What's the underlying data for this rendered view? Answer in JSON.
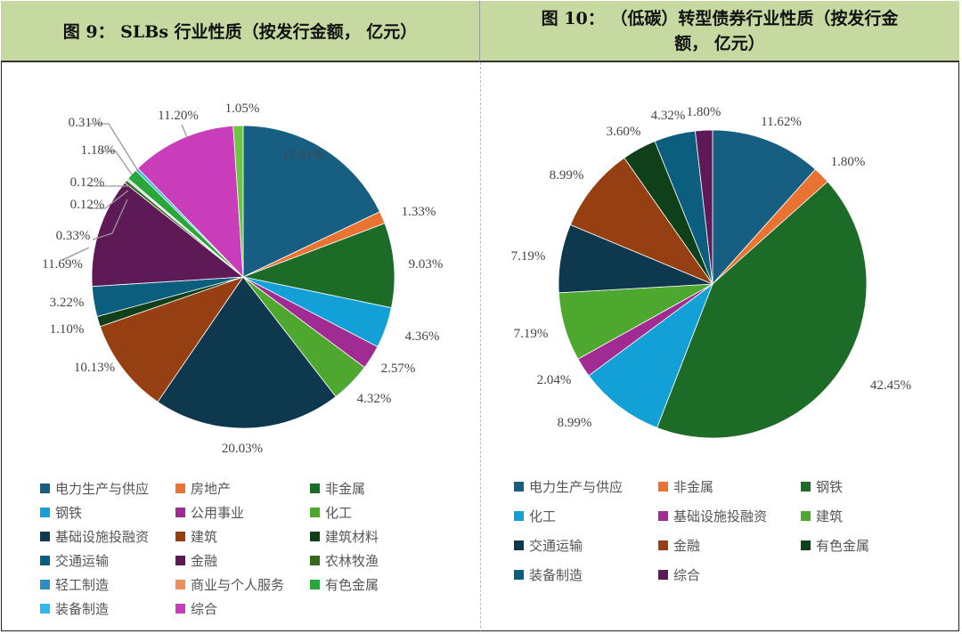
{
  "left": {
    "title": "图 9：  SLBs 行业性质（按发行金额，  亿元）",
    "chart_data": {
      "type": "pie",
      "title": "SLBs 行业性质（按发行金额，亿元）",
      "start_angle": "12 o'clock, clockwise",
      "slices": [
        {
          "name": "电力生产与供应",
          "value": 17.91,
          "color": "#175f82",
          "label": "17.91%"
        },
        {
          "name": "房地产",
          "value": 1.33,
          "color": "#e97333",
          "label": "1.33%"
        },
        {
          "name": "非金属",
          "value": 9.03,
          "color": "#1c6c28",
          "label": "9.03%"
        },
        {
          "name": "钢铁",
          "value": 4.36,
          "color": "#12a0d7",
          "label": "4.36%"
        },
        {
          "name": "公用事业",
          "value": 2.57,
          "color": "#a02b93",
          "label": "2.57%"
        },
        {
          "name": "化工",
          "value": 4.32,
          "color": "#4ea72e",
          "label": "4.32%"
        },
        {
          "name": "基础设施投融资",
          "value": 20.03,
          "color": "#0e384e",
          "label": "20.03%"
        },
        {
          "name": "建筑",
          "value": 10.13,
          "color": "#963f12",
          "label": "10.13%"
        },
        {
          "name": "建筑材料",
          "value": 1.1,
          "color": "#10401a",
          "label": "1.10%"
        },
        {
          "name": "交通运输",
          "value": 3.22,
          "color": "#0c5e7e",
          "label": "3.22%"
        },
        {
          "name": "金融",
          "value": 11.69,
          "color": "#5e1a57",
          "label": "11.69%"
        },
        {
          "name": "农林牧渔",
          "value": 0.33,
          "color": "#33691e",
          "label": "0.33%"
        },
        {
          "name": "轻工制造",
          "value": 0.12,
          "color": "#2b8ec3",
          "label": "0.12%"
        },
        {
          "name": "商业与个人服务",
          "value": 0.12,
          "color": "#ef8f5c",
          "label": "0.12%"
        },
        {
          "name": "有色金属",
          "value": 1.18,
          "color": "#2aa63a",
          "label": "1.18%"
        },
        {
          "name": "装备制造",
          "value": 0.31,
          "color": "#32b7ec",
          "label": "0.31%"
        },
        {
          "name": "综合",
          "value": 11.2,
          "color": "#c93dba",
          "label": "11.20%"
        },
        {
          "name": "",
          "value": 1.05,
          "color": "#6cc644",
          "label": "1.05%"
        }
      ],
      "legend": [
        "电力生产与供应",
        "房地产",
        "非金属",
        "钢铁",
        "公用事业",
        "化工",
        "基础设施投融资",
        "建筑",
        "建筑材料",
        "交通运输",
        "金融",
        "农林牧渔",
        "轻工制造",
        "商业与个人服务",
        "有色金属",
        "装备制造",
        "综合"
      ],
      "legend_position": "bottom"
    }
  },
  "right": {
    "title_line1": "图 10：  （低碳）转型债券行业性质（按发行金",
    "title_line2": "额，  亿元）",
    "chart_data": {
      "type": "pie",
      "title": "（低碳）转型债券行业性质（按发行金额，亿元）",
      "start_angle": "12 o'clock, clockwise",
      "slices": [
        {
          "name": "电力生产与供应",
          "value": 11.62,
          "color": "#175f82",
          "label": "11.62%"
        },
        {
          "name": "非金属",
          "value": 1.8,
          "color": "#e97333",
          "label": "1.80%"
        },
        {
          "name": "钢铁",
          "value": 42.45,
          "color": "#1c6c28",
          "label": "42.45%"
        },
        {
          "name": "化工",
          "value": 8.99,
          "color": "#12a0d7",
          "label": "8.99%"
        },
        {
          "name": "基础设施投融资",
          "value": 2.04,
          "color": "#a02b93",
          "label": "2.04%"
        },
        {
          "name": "建筑",
          "value": 7.19,
          "color": "#4ea72e",
          "label": "7.19%"
        },
        {
          "name": "交通运输",
          "value": 7.19,
          "color": "#0e384e",
          "label": "7.19%"
        },
        {
          "name": "金融",
          "value": 8.99,
          "color": "#963f12",
          "label": "8.99%"
        },
        {
          "name": "有色金属",
          "value": 3.6,
          "color": "#10401a",
          "label": "3.60%"
        },
        {
          "name": "装备制造",
          "value": 4.32,
          "color": "#0c5e7e",
          "label": "4.32%"
        },
        {
          "name": "综合",
          "value": 1.8,
          "color": "#5e1a57",
          "label": "1.80%"
        }
      ],
      "legend": [
        "电力生产与供应",
        "非金属",
        "钢铁",
        "化工",
        "基础设施投融资",
        "建筑",
        "交通运输",
        "金融",
        "有色金属",
        "装备制造",
        "综合"
      ],
      "legend_position": "bottom"
    }
  }
}
